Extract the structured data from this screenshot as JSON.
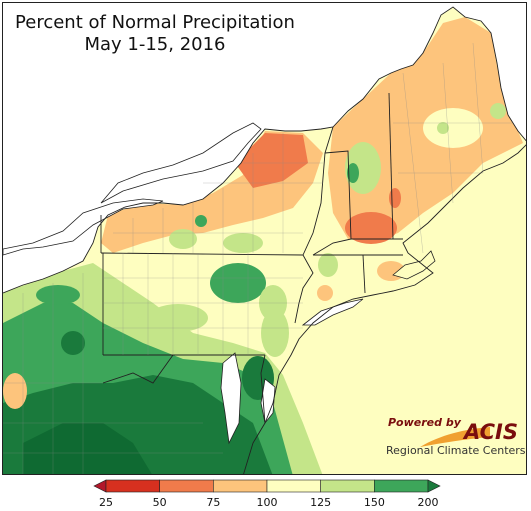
{
  "title": {
    "line1": "Percent of Normal Precipitation",
    "line2": "May 1-15, 2016"
  },
  "branding": {
    "powered_by": "Powered by",
    "logo": "ACIS",
    "subtitle": "Regional Climate Centers"
  },
  "legend": {
    "ticks": [
      "25",
      "50",
      "75",
      "100",
      "125",
      "150",
      "200"
    ],
    "bins": [
      {
        "range": "25-50",
        "color": "#d7301f"
      },
      {
        "range": "50-75",
        "color": "#f07b4b"
      },
      {
        "range": "75-100",
        "color": "#fdc47c"
      },
      {
        "range": "100-125",
        "color": "#fefec0"
      },
      {
        "range": "125-150",
        "color": "#c4e589"
      },
      {
        "range": "150-200",
        "color": "#3da65a"
      }
    ],
    "under_color": "#b2182b",
    "over_color": "#1a7a3c"
  },
  "colors": {
    "water": "#ffffff",
    "border": "#222222"
  }
}
